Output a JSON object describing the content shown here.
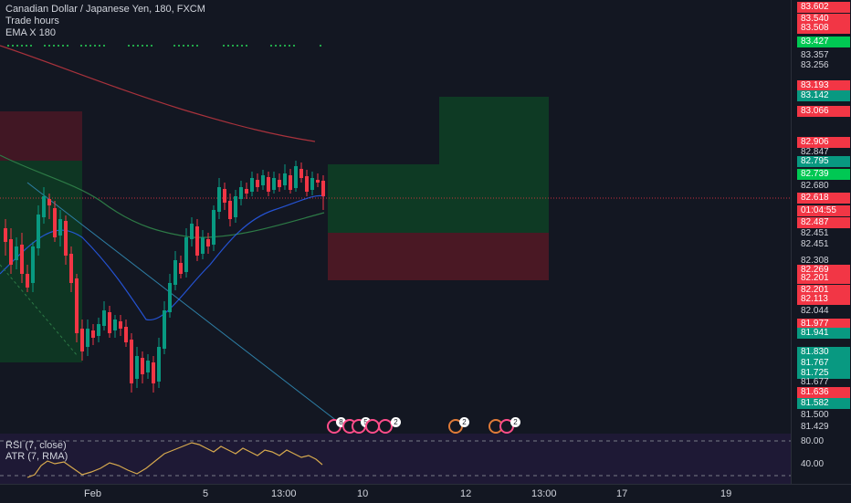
{
  "legend": {
    "symbol": "Canadian Dollar / Japanese Yen, 180, FXCM",
    "line2": "Trade hours",
    "line3": "EMA X 180"
  },
  "price_axis": [
    {
      "text": "83.602",
      "style": "red"
    },
    {
      "text": "83.540",
      "style": "red"
    },
    {
      "text": "83.508",
      "style": "red"
    },
    {
      "text": "83.427",
      "style": "lime"
    },
    {
      "text": "83.357",
      "style": "plain"
    },
    {
      "text": "83.256",
      "style": "plain"
    },
    {
      "text": "83.193",
      "style": "red"
    },
    {
      "text": "83.142",
      "style": "green"
    },
    {
      "text": "83.066",
      "style": "red"
    },
    {
      "text": "82.906",
      "style": "red"
    },
    {
      "text": "82.847",
      "style": "plain"
    },
    {
      "text": "82.795",
      "style": "green"
    },
    {
      "text": "82.739",
      "style": "lime"
    },
    {
      "text": "82.680",
      "style": "plain"
    },
    {
      "text": "82.618",
      "style": "cur"
    },
    {
      "text": "01:04:55",
      "style": "cur"
    },
    {
      "text": "82.487",
      "style": "red"
    },
    {
      "text": "82.451",
      "style": "plain"
    },
    {
      "text": "82.451",
      "style": "plain"
    },
    {
      "text": "82.308",
      "style": "plain"
    },
    {
      "text": "82.269",
      "style": "red"
    },
    {
      "text": "82.201",
      "style": "red"
    },
    {
      "text": "82.201",
      "style": "red"
    },
    {
      "text": "82.113",
      "style": "red"
    },
    {
      "text": "82.044",
      "style": "plain"
    },
    {
      "text": "81.977",
      "style": "red"
    },
    {
      "text": "81.941",
      "style": "green"
    },
    {
      "text": "81.830",
      "style": "green"
    },
    {
      "text": "81.767",
      "style": "green"
    },
    {
      "text": "81.725",
      "style": "green"
    },
    {
      "text": "81.677",
      "style": "plain"
    },
    {
      "text": "81.636",
      "style": "red"
    },
    {
      "text": "81.582",
      "style": "green"
    },
    {
      "text": "81.500",
      "style": "plain"
    },
    {
      "text": "81.429",
      "style": "plain"
    },
    {
      "text": "80.00",
      "style": "plain"
    },
    {
      "text": "40.00",
      "style": "plain"
    }
  ],
  "indicator": {
    "line1": "RSI (7, close)",
    "line2": "ATR (7, RMA)"
  },
  "time_axis": [
    "Feb",
    "5",
    "13:00",
    "10",
    "12",
    "13:00",
    "17",
    "19"
  ],
  "badges": [
    {
      "text": "8",
      "style": "pink"
    },
    {
      "text": "5",
      "style": "pink"
    },
    {
      "text": "2",
      "style": "pink"
    },
    {
      "text": "2",
      "style": "orange"
    },
    {
      "text": "2",
      "style": "orange"
    }
  ],
  "colors": {
    "up": "#089981",
    "down": "#f23645",
    "background": "#131722",
    "long_profit": "#0e3a24",
    "long_loss": "#4a1824"
  }
}
